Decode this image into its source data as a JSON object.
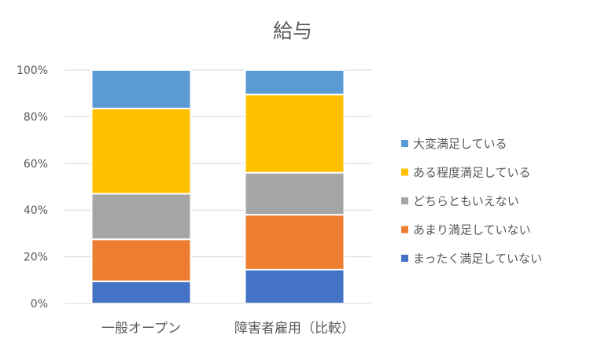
{
  "chart_data": {
    "type": "bar",
    "stacked": true,
    "title": "給与",
    "xlabel": "",
    "ylabel": "",
    "categories": [
      "一般オープン",
      "障害者雇用（比較）"
    ],
    "yticks": [
      "0%",
      "20%",
      "40%",
      "60%",
      "80%",
      "100%"
    ],
    "ylim": [
      0,
      100
    ],
    "grid": true,
    "legend_position": "right",
    "series": [
      {
        "name": "まったく満足していない",
        "color": "#4472C4",
        "values": [
          9.5,
          14.5
        ]
      },
      {
        "name": "あまり満足していない",
        "color": "#ED7D31",
        "values": [
          18,
          23.5
        ]
      },
      {
        "name": "どちらともいえない",
        "color": "#A5A5A5",
        "values": [
          19.5,
          18
        ]
      },
      {
        "name": "ある程度満足している",
        "color": "#FFC000",
        "values": [
          36.5,
          33.5
        ]
      },
      {
        "name": "大変満足している",
        "color": "#5B9BD5",
        "values": [
          16.5,
          10.5
        ]
      }
    ]
  }
}
